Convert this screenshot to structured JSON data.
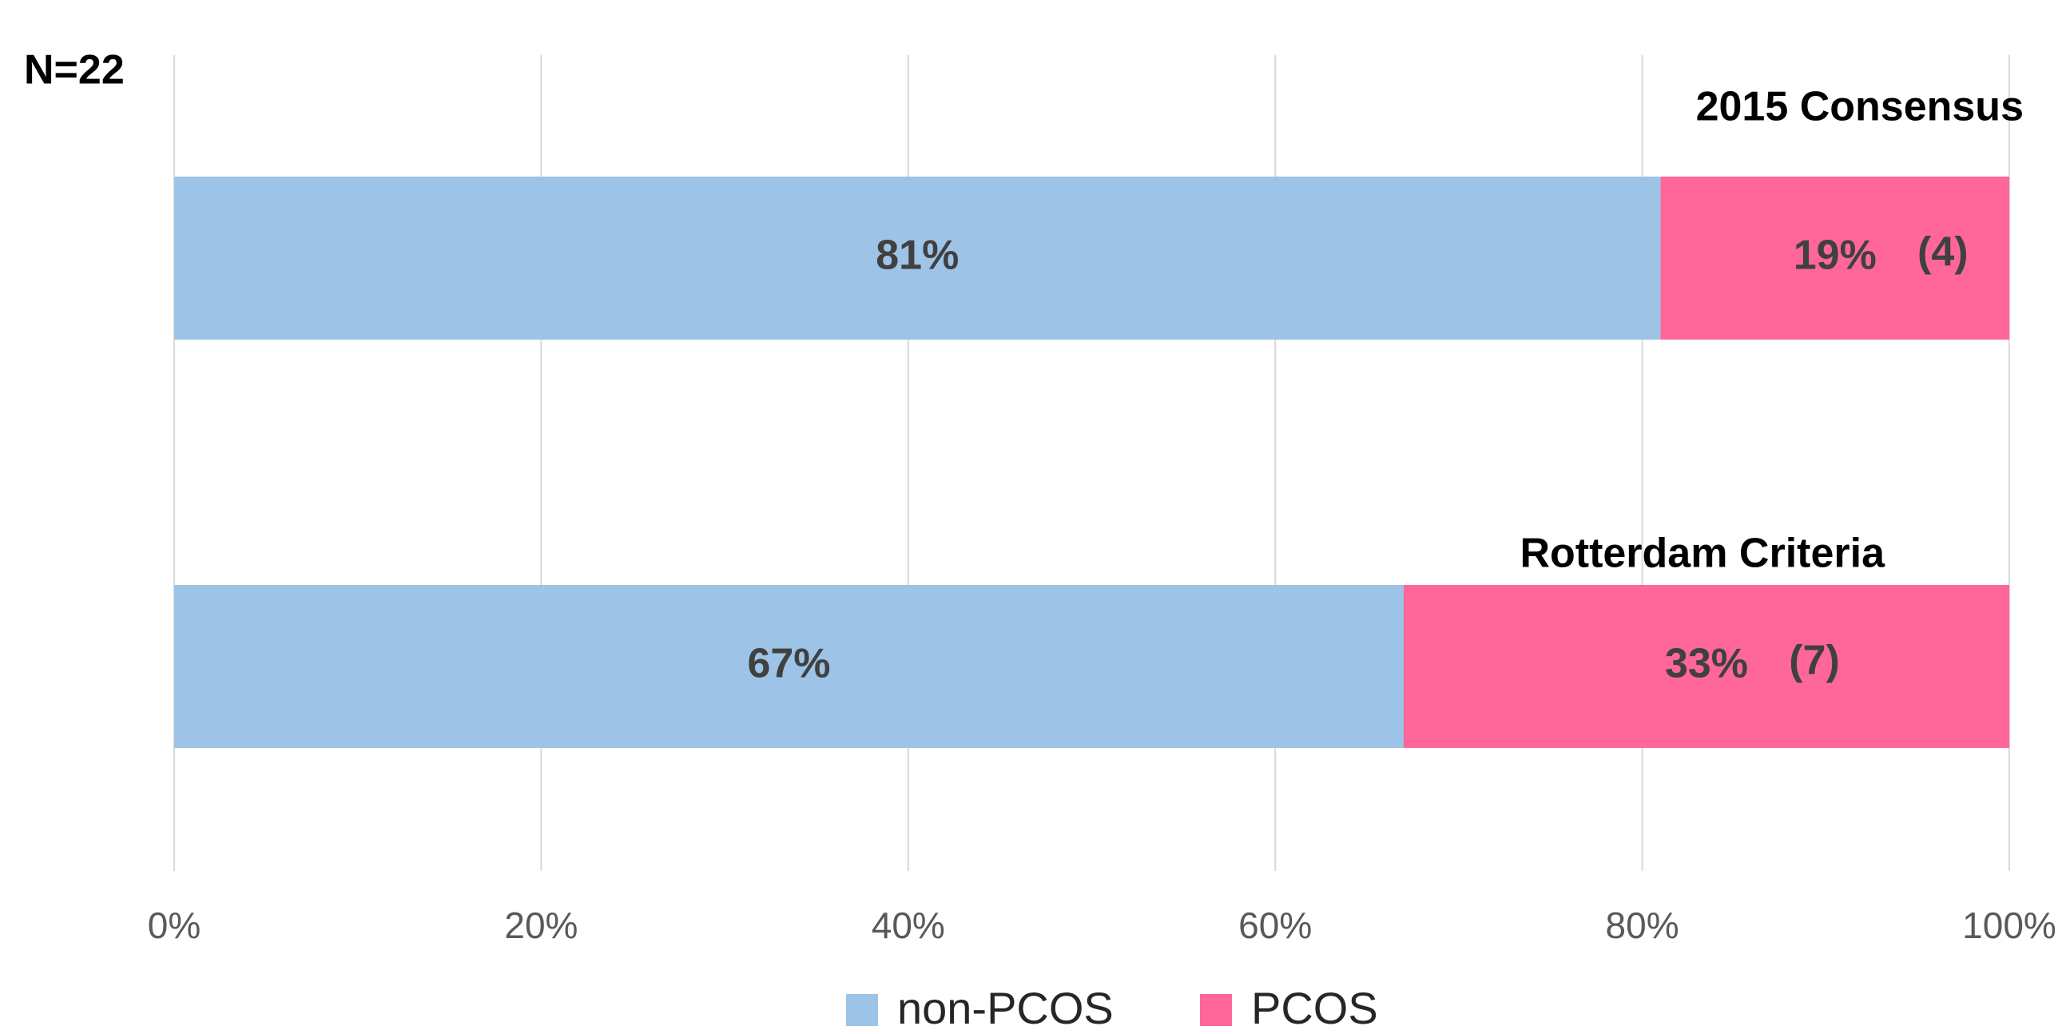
{
  "chart_data": {
    "type": "stacked_barh",
    "annotation": "N=22",
    "categories": [
      "2015 Consensus",
      "Rotterdam Criteria"
    ],
    "series": [
      {
        "name": "non-PCOS",
        "color": "#9dc3e6",
        "values": [
          81,
          67
        ],
        "value_labels": [
          "81%",
          "67%"
        ]
      },
      {
        "name": "PCOS",
        "color": "#ff6699",
        "values": [
          19,
          33
        ],
        "value_labels": [
          "19%",
          "33%"
        ],
        "count_labels": [
          "(4)",
          "(7)"
        ]
      }
    ],
    "xlim": [
      0,
      100
    ],
    "xticks": [
      {
        "value": 0,
        "label": "0%"
      },
      {
        "value": 20,
        "label": "20%"
      },
      {
        "value": 40,
        "label": "40%"
      },
      {
        "value": 60,
        "label": "60%"
      },
      {
        "value": 80,
        "label": "80%"
      },
      {
        "value": 100,
        "label": "100%"
      }
    ],
    "grid": true
  }
}
